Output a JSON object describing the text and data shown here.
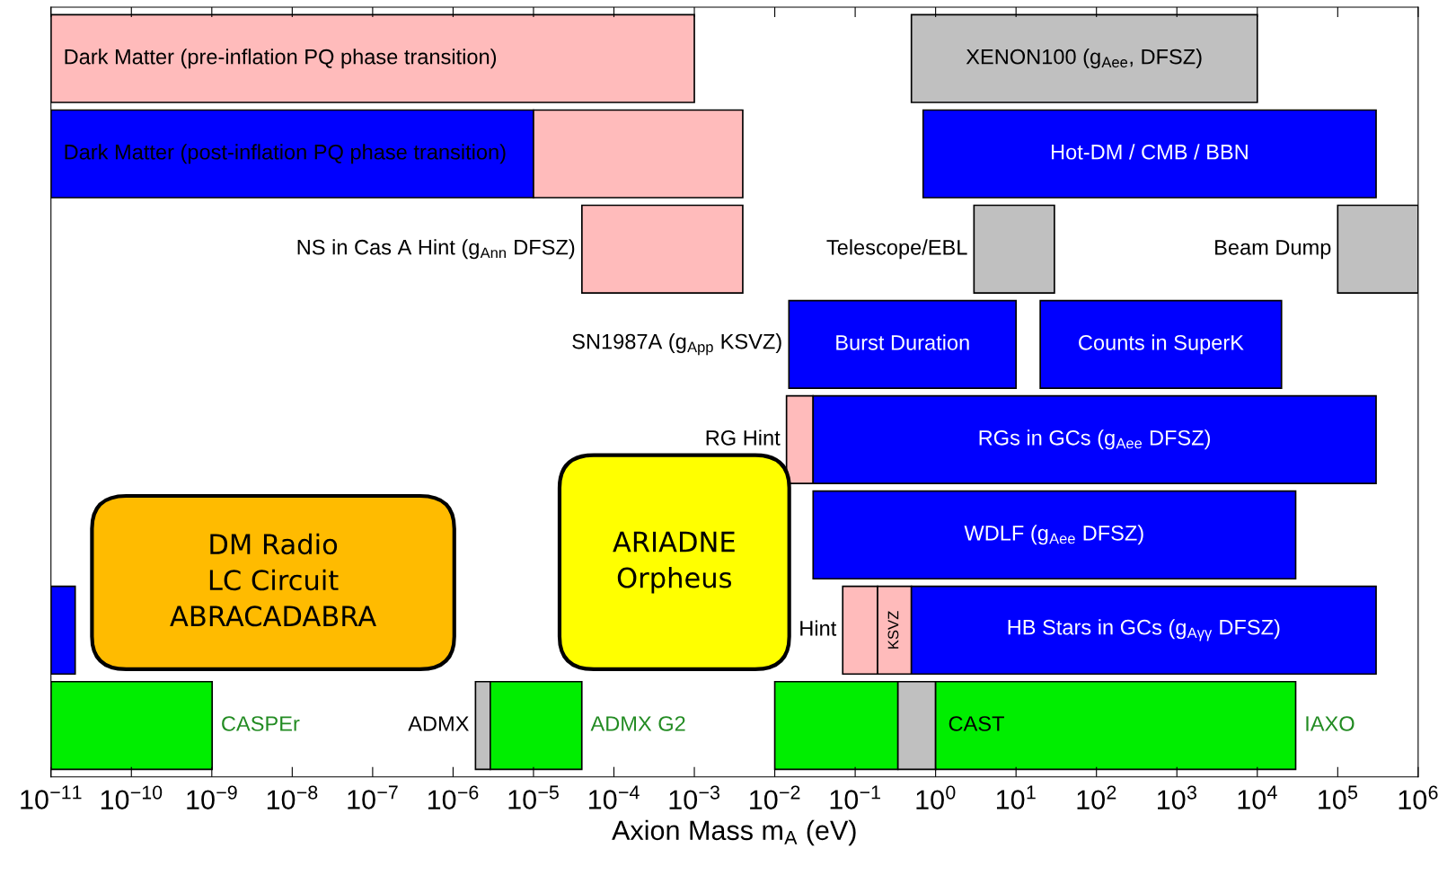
{
  "chart_data": {
    "type": "bar",
    "orientation": "horizontal",
    "log": "x",
    "grid": false,
    "legend": false,
    "tick_labels": "x",
    "xlabel": "Axion Mass m$_{A}$ (eV)",
    "categories": [
      null,
      null,
      null,
      null,
      null,
      null,
      null,
      null
    ],
    "xlim": [
      1e-11,
      1000000.0
    ],
    "xticks": [
      {
        "value": 1e-11,
        "label": "10$^{−11}$"
      },
      {
        "value": 1e-10,
        "label": "10$^{−10}$"
      },
      {
        "value": 1e-09,
        "label": "10$^{−9}$"
      },
      {
        "value": 1e-08,
        "label": "10$^{−8}$"
      },
      {
        "value": 1e-07,
        "label": "10$^{−7}$"
      },
      {
        "value": 1e-06,
        "label": "10$^{−6}$"
      },
      {
        "value": 1e-05,
        "label": "10$^{−5}$"
      },
      {
        "value": 0.0001,
        "label": "10$^{−4}$"
      },
      {
        "value": 0.001,
        "label": "10$^{−3}$"
      },
      {
        "value": 0.01,
        "label": "10$^{−2}$"
      },
      {
        "value": 0.1,
        "label": "10$^{−1}$"
      },
      {
        "value": 1,
        "label": "10$^{0}$"
      },
      {
        "value": 10,
        "label": "10$^{1}$"
      },
      {
        "value": 100,
        "label": "10$^{2}$"
      },
      {
        "value": 1000,
        "label": "10$^{3}$"
      },
      {
        "value": 10000,
        "label": "10$^{4}$"
      },
      {
        "value": 100000,
        "label": "10$^{5}$"
      },
      {
        "value": 1000000,
        "label": "10$^{6}$"
      }
    ],
    "series": [
      {
        "name": "Dark Matter (pre-inflation PQ phase transition)",
        "color": "#ffbbbb",
        "values": [
          0.001,
          null,
          null,
          null,
          null,
          null,
          null,
          null
        ],
        "base": [
          1e-11,
          null,
          null,
          null,
          null,
          null,
          null,
          null
        ]
      },
      {
        "name": "XENON100 (g$_{Aee}$, DFSZ)",
        "color": "#c0c0c0",
        "values": [
          10000,
          null,
          null,
          null,
          null,
          null,
          null,
          null
        ],
        "base": [
          0.5,
          null,
          null,
          null,
          null,
          null,
          null,
          null
        ]
      },
      {
        "name": "Dark Matter (post-inflation PQ phase transition)",
        "color": "#0000ff",
        "values": [
          null,
          1e-05,
          null,
          null,
          null,
          null,
          null,
          null
        ],
        "base": [
          null,
          1e-11,
          null,
          null,
          null,
          null,
          null,
          null
        ]
      },
      {
        "color": "#ffbbbb",
        "values": [
          null,
          0.00399,
          null,
          null,
          null,
          null,
          null,
          null
        ],
        "base": [
          null,
          1e-05,
          null,
          null,
          null,
          null,
          null,
          null
        ]
      },
      {
        "name": "Hot-DM / CMB / BBN",
        "color": "#0000ff",
        "values": [
          null,
          300000,
          null,
          null,
          null,
          null,
          null,
          null
        ],
        "base": [
          null,
          0.7,
          null,
          null,
          null,
          null,
          null,
          null
        ]
      },
      {
        "name": "NS in Cas A Hint (g$_{Ann}$ DFSZ)",
        "color": "#ffbbbb",
        "values": [
          null,
          null,
          0.00396,
          null,
          null,
          null,
          null,
          null
        ],
        "base": [
          null,
          null,
          4e-05,
          null,
          null,
          null,
          null,
          null
        ]
      },
      {
        "name": "Telescope/EBL",
        "color": "#c0c0c0",
        "values": [
          null,
          null,
          27,
          null,
          null,
          null,
          null,
          null
        ],
        "base": [
          null,
          null,
          3,
          null,
          null,
          null,
          null,
          null
        ]
      },
      {
        "name": "Beam Dump",
        "color": "#c0c0c0",
        "values": [
          null,
          null,
          900000,
          null,
          null,
          null,
          null,
          null
        ],
        "base": [
          null,
          null,
          100000,
          null,
          null,
          null,
          null,
          null
        ]
      },
      {
        "name": "Burst Duration",
        "color": "#0000ff",
        "values": [
          null,
          null,
          null,
          9.985,
          null,
          null,
          null,
          null
        ],
        "base": [
          null,
          null,
          null,
          0.015,
          null,
          null,
          null,
          null
        ]
      },
      {
        "name": "Counts in SuperK",
        "color": "#0000ff",
        "values": [
          null,
          null,
          null,
          19980,
          null,
          null,
          null,
          null
        ],
        "base": [
          null,
          null,
          null,
          20,
          null,
          null,
          null,
          null
        ]
      },
      {
        "name": "RG Hint",
        "color": "#ffbbbb",
        "values": [
          null,
          null,
          null,
          null,
          0.016,
          null,
          null,
          null
        ],
        "base": [
          null,
          null,
          null,
          null,
          0.014,
          null,
          null,
          null
        ]
      },
      {
        "name": "RGs in GCs (g$_{Aee}$ DFSZ)",
        "color": "#0000ff",
        "values": [
          null,
          null,
          null,
          null,
          300000,
          null,
          null,
          null
        ],
        "base": [
          null,
          null,
          null,
          null,
          0.03,
          null,
          null,
          null
        ]
      },
      {
        "name": "WDLF (g$_{Aee}$ DFSZ)",
        "color": "#0000ff",
        "values": [
          null,
          null,
          null,
          null,
          null,
          30000,
          null,
          null
        ],
        "base": [
          null,
          null,
          null,
          null,
          null,
          0.03,
          null,
          null
        ]
      },
      {
        "color": "#0000ff",
        "values": [
          null,
          null,
          null,
          null,
          null,
          null,
          1e-11,
          null
        ],
        "base": [
          null,
          null,
          null,
          null,
          null,
          null,
          1e-11,
          null
        ]
      },
      {
        "name": "Hint",
        "color": "#ffbbbb",
        "values": [
          null,
          null,
          null,
          null,
          null,
          null,
          0.12,
          null
        ],
        "base": [
          null,
          null,
          null,
          null,
          null,
          null,
          0.07,
          null
        ]
      },
      {
        "name": "KSVZ",
        "color": "#ffbbbb",
        "values": [
          null,
          null,
          null,
          null,
          null,
          null,
          0.31,
          null
        ],
        "base": [
          null,
          null,
          null,
          null,
          null,
          null,
          0.19,
          null
        ]
      },
      {
        "name": "HB Stars in GCs (g$_{Aγγ}$ DFSZ)",
        "color": "#0000ff",
        "values": [
          null,
          null,
          null,
          null,
          null,
          null,
          300000,
          null
        ],
        "base": [
          null,
          null,
          null,
          null,
          null,
          null,
          0.5,
          null
        ]
      },
      {
        "name": "CASPEr",
        "color": "#00ee00",
        "values": [
          null,
          null,
          null,
          null,
          null,
          null,
          null,
          1e-09
        ],
        "base": [
          null,
          null,
          null,
          null,
          null,
          null,
          null,
          1e-11
        ]
      },
      {
        "name": "ADMX",
        "color": "#c0c0c0",
        "values": [
          null,
          null,
          null,
          null,
          null,
          null,
          null,
          1e-06
        ],
        "base": [
          null,
          null,
          null,
          null,
          null,
          null,
          null,
          1.9e-06
        ]
      },
      {
        "name": "ADMX G2",
        "color": "#00ee00",
        "values": [
          null,
          null,
          null,
          null,
          null,
          null,
          null,
          3.7e-05
        ],
        "base": [
          null,
          null,
          null,
          null,
          null,
          null,
          null,
          2.9e-06
        ]
      },
      {
        "color": "#00ee00",
        "values": [
          null,
          null,
          null,
          null,
          null,
          null,
          null,
          0.33
        ],
        "base": [
          null,
          null,
          null,
          null,
          null,
          null,
          null,
          0.01
        ]
      },
      {
        "color": "#c0c0c0",
        "values": [
          null,
          null,
          null,
          null,
          null,
          null,
          null,
          0.66
        ],
        "base": [
          null,
          null,
          null,
          null,
          null,
          null,
          null,
          0.34
        ]
      },
      {
        "name": "CAST",
        "color": "#00ee00",
        "values": [
          null,
          null,
          null,
          null,
          null,
          null,
          null,
          30000
        ],
        "base": [
          null,
          null,
          null,
          null,
          null,
          null,
          null,
          1
        ]
      }
    ],
    "annotations": [
      {
        "text": "IAXO",
        "x": 30000
      },
      "DM Radio\nLC Circuit\nABRACADABRA",
      "ARIADNE\nOrpheus",
      {
        "text": "SN1987A (g$_{App}$ KSVZ)",
        "x": 0.015
      }
    ]
  }
}
